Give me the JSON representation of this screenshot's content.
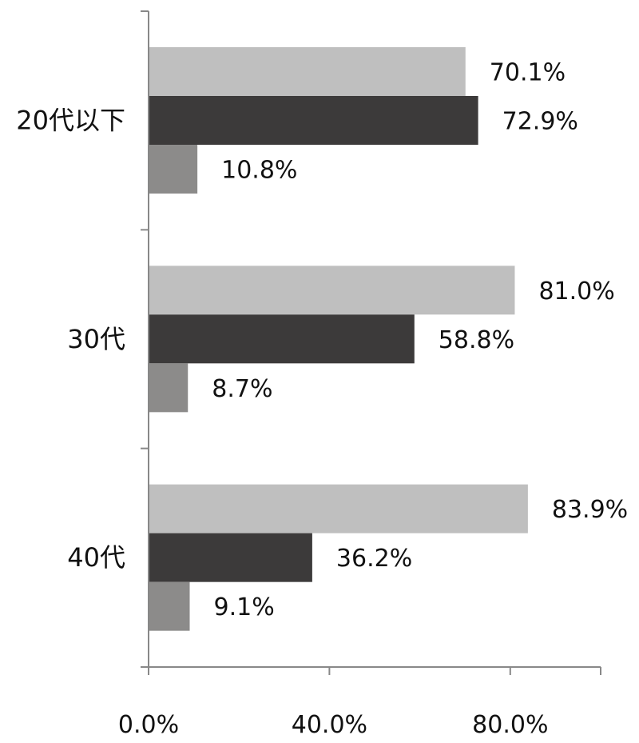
{
  "chart_data": {
    "type": "bar",
    "orientation": "horizontal",
    "categories": [
      "20代以下",
      "30代",
      "40代"
    ],
    "series": [
      {
        "values": [
          70.1,
          81.0,
          83.9
        ],
        "labels": [
          "70.1%",
          "81.0%",
          "83.9%"
        ],
        "color": "#bfbfbf"
      },
      {
        "values": [
          72.9,
          58.8,
          36.2
        ],
        "labels": [
          "72.9%",
          "58.8%",
          "36.2%"
        ],
        "color": "#3c3a3a"
      },
      {
        "values": [
          10.8,
          8.7,
          9.1
        ],
        "labels": [
          "10.8%",
          "8.7%",
          "9.1%"
        ],
        "color": "#8c8b8a"
      }
    ],
    "x_ticks": [
      0,
      40,
      80
    ],
    "x_tick_labels": [
      "0.0%",
      "40.0%",
      "80.0%"
    ],
    "xlim": [
      0,
      100
    ],
    "grid": false,
    "legend": "none"
  }
}
